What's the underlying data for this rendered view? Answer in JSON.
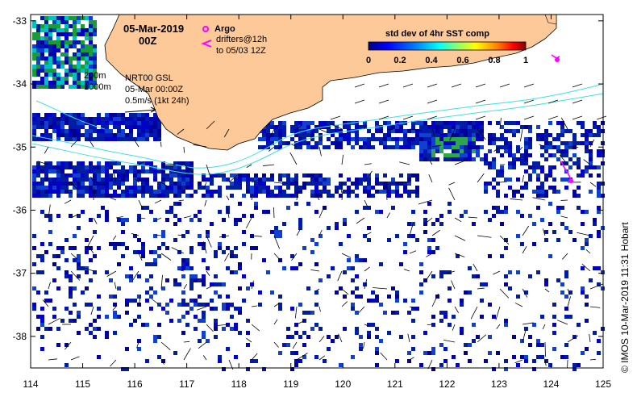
{
  "title": {
    "date": "05-Mar-2019",
    "time": "00Z"
  },
  "legend": {
    "argo_label": "Argo",
    "drifters_line1": "drifters@12h",
    "drifters_line2": "to 05/03 12Z",
    "argo_color": "#ff00ff"
  },
  "annotations": {
    "depth_200": "200m",
    "depth_1000": "1000m",
    "product": "NRT00 GSL",
    "product_time": "05-Mar 00:00Z",
    "vector_scale": "0.5m/s (1kt 24h)"
  },
  "colorbar": {
    "title": "std dev of 4hr SST comp",
    "ticks": [
      "0",
      "0.2",
      "0.4",
      "0.6",
      "0.8",
      "1"
    ],
    "colors": [
      "#00007f",
      "#0000ff",
      "#007fff",
      "#00ffff",
      "#7fff7f",
      "#ffff00",
      "#ff7f00",
      "#ff0000",
      "#7f0000"
    ]
  },
  "credit": "© IMOS 10-Mar-2019 11:31 Hobart",
  "axes": {
    "x_ticks": [
      "114",
      "115",
      "116",
      "117",
      "118",
      "119",
      "120",
      "121",
      "122",
      "123",
      "124",
      "125"
    ],
    "y_ticks": [
      "-33",
      "-34",
      "-35",
      "-36",
      "-37",
      "-38"
    ],
    "lon_range": [
      114,
      125
    ],
    "lat_range": [
      -38.5,
      -32.9
    ]
  },
  "colors": {
    "land": "#fdc999",
    "coast": "#000000",
    "isobath": "#40e0e0",
    "low_sd": "#001f9f",
    "high_sd": "#2a8a3a"
  }
}
